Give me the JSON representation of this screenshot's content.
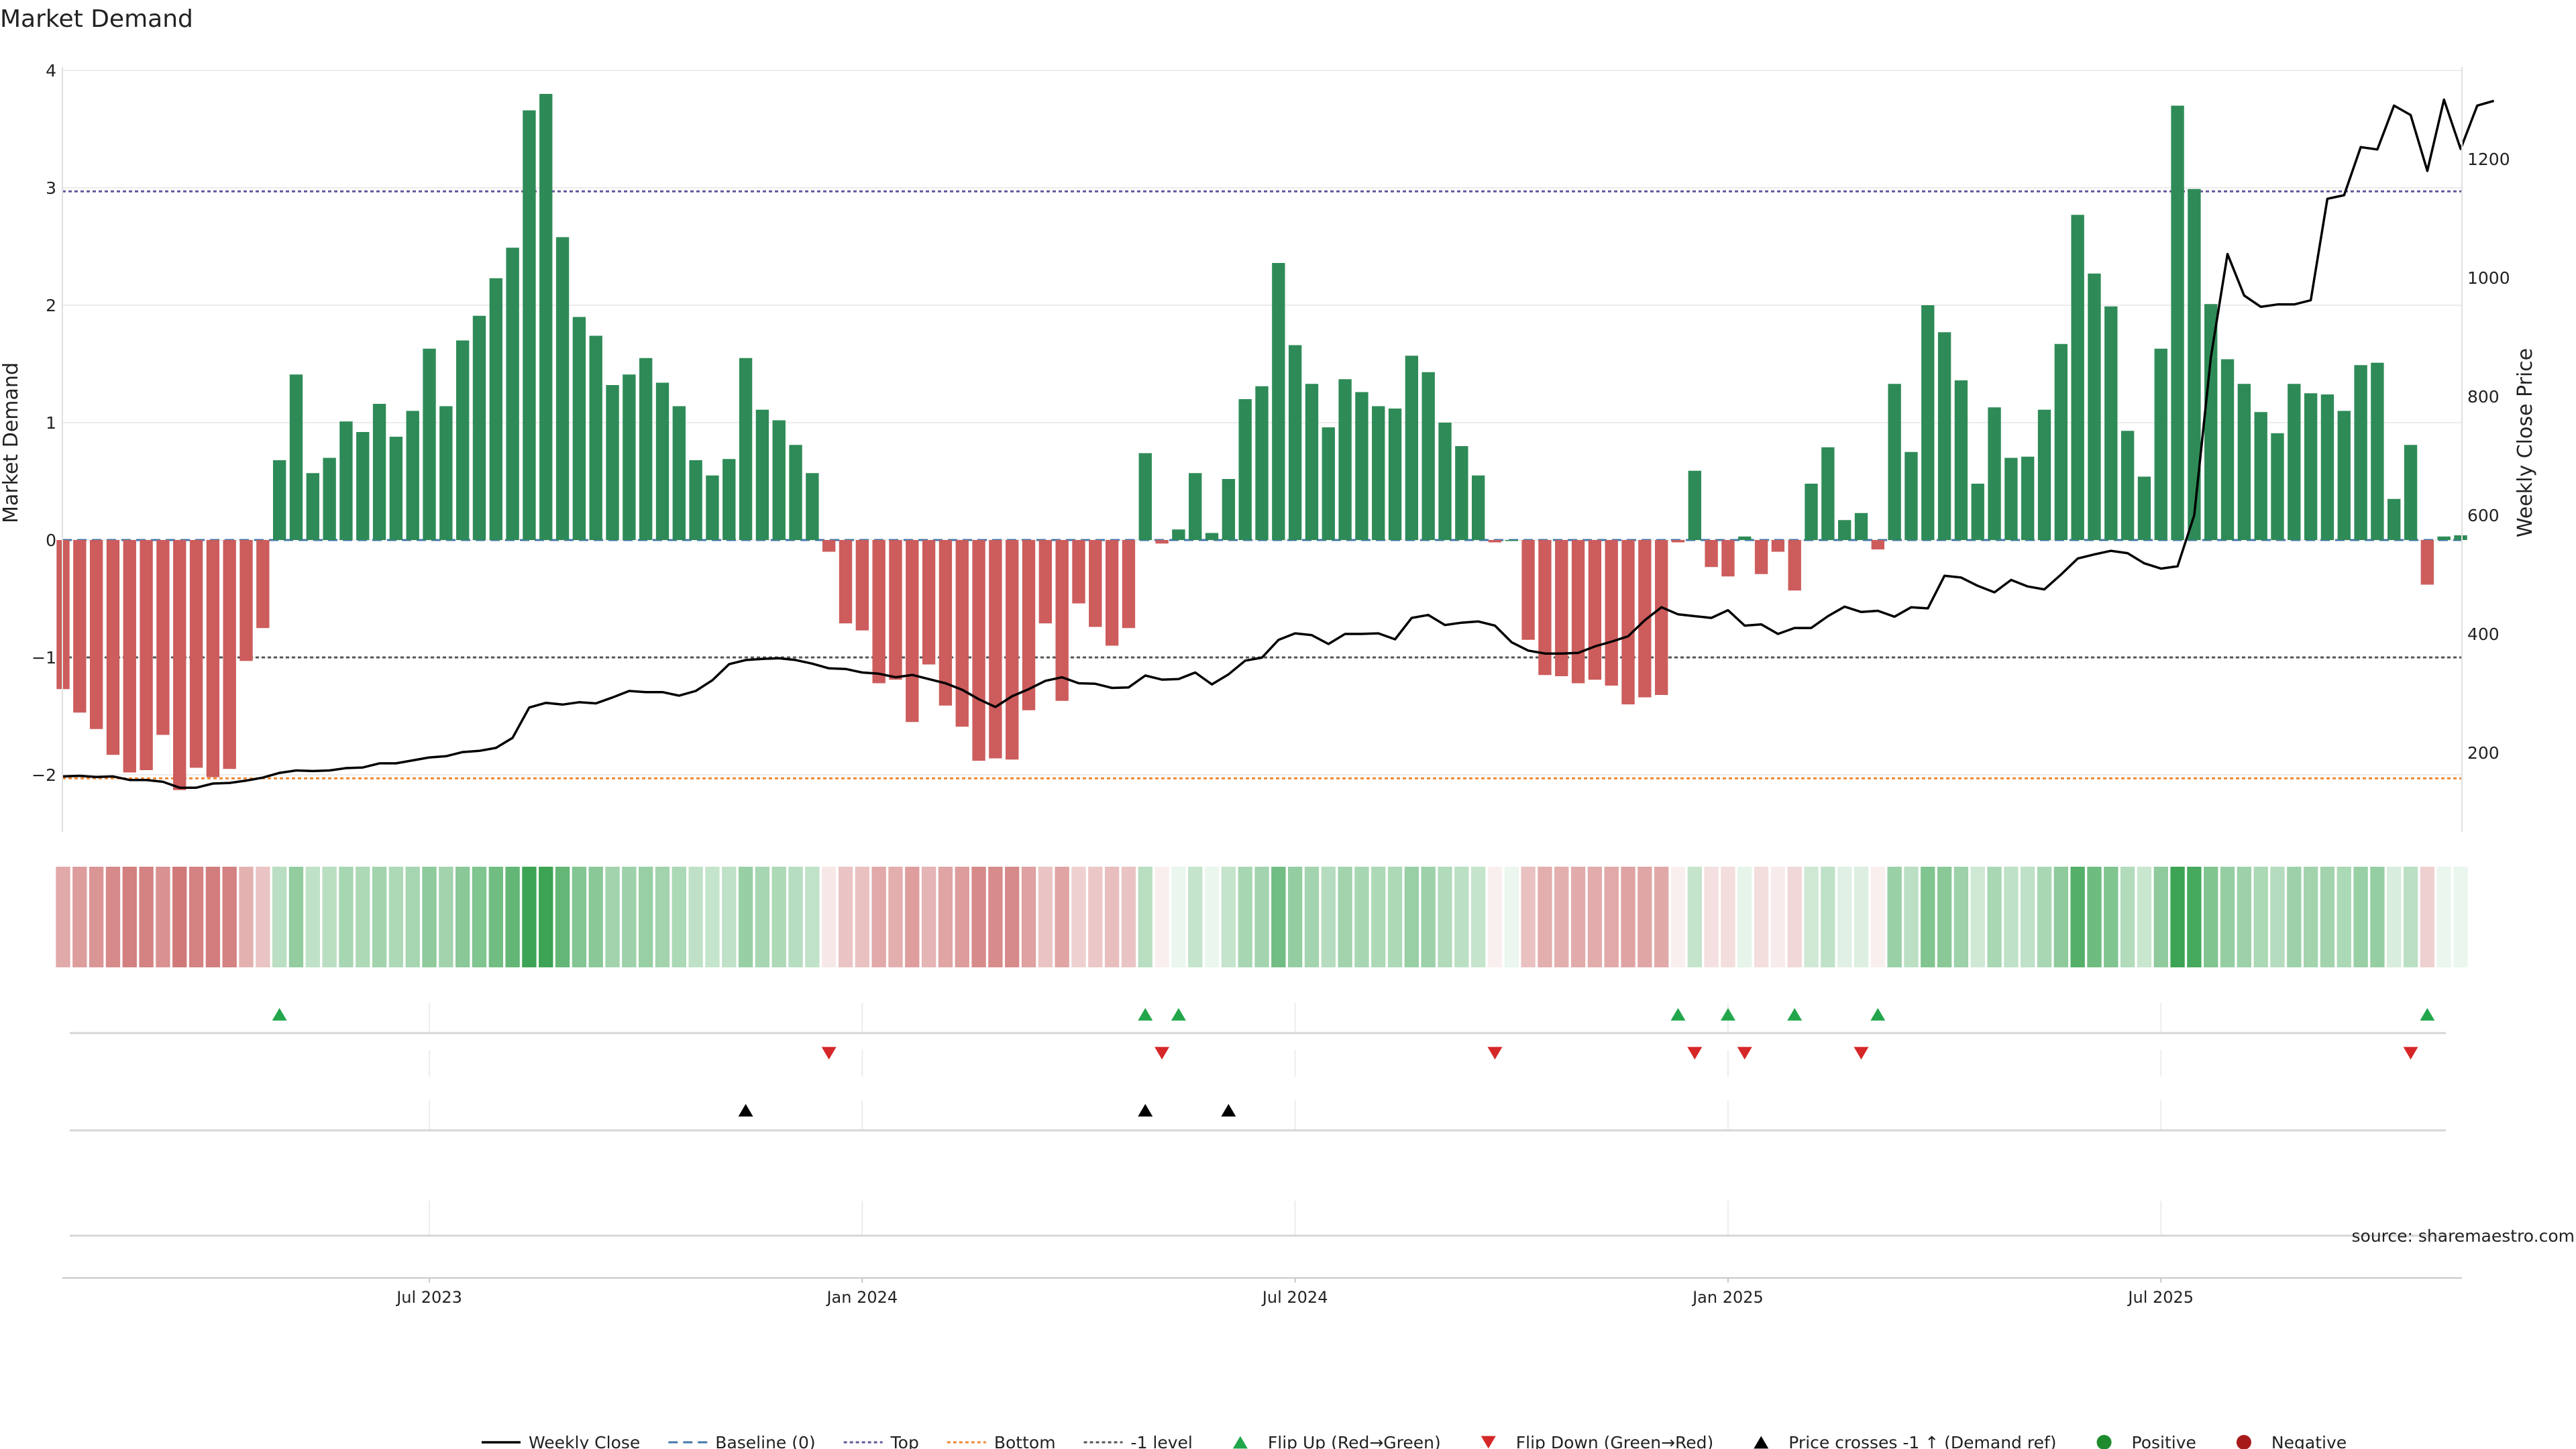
{
  "chart_data": {
    "type": "bar",
    "title": "Market Demand",
    "ylabel": "Market Demand",
    "y2label": "Weekly Close Price",
    "ylim": [
      -2.5,
      4.0
    ],
    "y2lim": [
      80,
      1400
    ],
    "yticks": [
      -2,
      -1,
      0,
      1,
      2,
      3,
      4
    ],
    "yticks_right": [
      200,
      400,
      600,
      800,
      1000,
      1200
    ],
    "xlabels": [
      {
        "i": 22,
        "label": "Jul 2023"
      },
      {
        "i": 48,
        "label": "Jan 2024"
      },
      {
        "i": 74,
        "label": "Jul 2024"
      },
      {
        "i": 100,
        "label": "Jan 2025"
      },
      {
        "i": 126,
        "label": "Jul 2025"
      }
    ],
    "reference_lines": {
      "top": 2.97,
      "bottom": -2.03,
      "minus_one": -1.0,
      "baseline": 0
    },
    "demand": [
      -1.27,
      -1.47,
      -1.61,
      -1.83,
      -1.98,
      -1.96,
      -1.66,
      -2.13,
      -1.94,
      -2.02,
      -1.95,
      -1.03,
      -0.75,
      0.68,
      1.41,
      0.57,
      0.7,
      1.01,
      0.92,
      1.16,
      0.88,
      1.1,
      1.63,
      1.14,
      1.7,
      1.91,
      2.23,
      2.49,
      3.66,
      3.8,
      2.58,
      1.9,
      1.74,
      1.32,
      1.41,
      1.55,
      1.34,
      1.14,
      0.68,
      0.55,
      0.69,
      1.55,
      1.11,
      1.02,
      0.81,
      0.57,
      -0.1,
      -0.71,
      -0.77,
      -1.22,
      -1.19,
      -1.55,
      -1.06,
      -1.41,
      -1.59,
      -1.88,
      -1.86,
      -1.87,
      -1.45,
      -0.71,
      -1.37,
      -0.54,
      -0.74,
      -0.9,
      -0.75,
      0.74,
      -0.03,
      0.09,
      0.57,
      0.06,
      0.52,
      1.2,
      1.31,
      2.36,
      1.66,
      1.33,
      0.96,
      1.37,
      1.26,
      1.14,
      1.12,
      1.57,
      1.43,
      1.0,
      0.8,
      0.55,
      -0.02,
      0.0,
      -0.85,
      -1.15,
      -1.16,
      -1.22,
      -1.19,
      -1.24,
      -1.4,
      -1.34,
      -1.32,
      -0.02,
      0.59,
      -0.23,
      -0.31,
      0.03,
      -0.29,
      -0.1,
      -0.43,
      0.48,
      0.79,
      0.17,
      0.23,
      -0.08,
      1.33,
      0.75,
      2.0,
      1.77,
      1.36,
      0.48,
      1.13,
      0.7,
      0.71,
      1.11,
      1.67,
      2.77,
      2.27,
      1.99,
      0.93,
      0.54,
      1.63,
      3.7,
      2.99,
      2.01,
      1.54,
      1.33,
      1.09,
      0.91,
      1.33,
      1.25,
      1.24,
      1.1,
      1.49,
      1.51,
      0.35,
      0.81,
      -0.38,
      0.03,
      0.04
    ],
    "price": [
      160,
      161,
      159,
      160,
      154,
      154,
      151,
      141,
      141,
      148,
      149,
      153,
      158,
      166,
      170,
      169,
      170,
      174,
      175,
      182,
      182,
      187,
      192,
      194,
      201,
      203,
      208,
      225,
      276,
      284,
      281,
      285,
      283,
      293,
      304,
      302,
      302,
      296,
      304,
      322,
      349,
      356,
      358,
      359,
      356,
      350,
      342,
      341,
      335,
      333,
      327,
      331,
      324,
      317,
      306,
      290,
      277,
      295,
      307,
      321,
      327,
      317,
      316,
      309,
      310,
      330,
      323,
      324,
      335,
      315,
      332,
      355,
      360,
      390,
      401,
      398,
      383,
      400,
      400,
      401,
      391,
      427,
      432,
      415,
      419,
      421,
      414,
      386,
      372,
      367,
      367,
      368,
      379,
      387,
      396,
      423,
      445,
      433,
      430,
      427,
      440,
      414,
      416,
      400,
      410,
      410,
      430,
      446,
      437,
      439,
      429,
      445,
      443,
      498,
      495,
      481,
      470,
      491,
      480,
      475,
      500,
      527,
      534,
      540,
      536,
      519,
      510,
      514,
      600,
      866,
      1040,
      970,
      951,
      955,
      955,
      962,
      1133,
      1139,
      1220,
      1216,
      1290,
      1274,
      1180,
      1300,
      1217,
      1290,
      1298
    ],
    "strip_alpha": [
      0.55,
      0.63,
      0.68,
      0.75,
      0.81,
      0.8,
      0.7,
      0.86,
      0.8,
      0.83,
      0.8,
      0.5,
      0.38,
      0.36,
      0.56,
      0.33,
      0.36,
      0.45,
      0.42,
      0.48,
      0.42,
      0.46,
      0.58,
      0.48,
      0.6,
      0.65,
      0.73,
      0.8,
      1.0,
      1.0,
      0.8,
      0.63,
      0.6,
      0.48,
      0.5,
      0.53,
      0.48,
      0.43,
      0.33,
      0.3,
      0.33,
      0.53,
      0.45,
      0.42,
      0.37,
      0.32,
      0.15,
      0.38,
      0.4,
      0.55,
      0.52,
      0.62,
      0.48,
      0.58,
      0.63,
      0.75,
      0.74,
      0.75,
      0.6,
      0.38,
      0.58,
      0.3,
      0.36,
      0.42,
      0.38,
      0.36,
      0.1,
      0.1,
      0.3,
      0.1,
      0.3,
      0.45,
      0.47,
      0.72,
      0.55,
      0.47,
      0.38,
      0.48,
      0.45,
      0.42,
      0.42,
      0.53,
      0.5,
      0.4,
      0.35,
      0.3,
      0.1,
      0.1,
      0.4,
      0.52,
      0.52,
      0.54,
      0.53,
      0.55,
      0.59,
      0.57,
      0.56,
      0.1,
      0.3,
      0.2,
      0.22,
      0.12,
      0.22,
      0.13,
      0.25,
      0.25,
      0.33,
      0.16,
      0.18,
      0.1,
      0.52,
      0.35,
      0.65,
      0.6,
      0.5,
      0.25,
      0.44,
      0.33,
      0.33,
      0.44,
      0.58,
      0.88,
      0.74,
      0.65,
      0.4,
      0.28,
      0.58,
      1.0,
      0.95,
      0.65,
      0.54,
      0.5,
      0.43,
      0.38,
      0.5,
      0.48,
      0.48,
      0.43,
      0.53,
      0.54,
      0.2,
      0.35,
      0.3,
      0.1,
      0.1
    ],
    "flip_up": [
      13,
      65,
      67,
      97,
      100,
      104,
      109,
      142
    ],
    "flip_down": [
      46,
      66,
      86,
      98,
      101,
      108,
      141
    ],
    "price_cross": [
      41,
      65,
      70
    ],
    "colors": {
      "positive": "#2e8b57",
      "negative": "#cd5c5c",
      "strip_positive": "#3ca454",
      "strip_negative": "#c96363",
      "price_line": "#000000",
      "baseline": "#4477aa",
      "top": "#665599",
      "bottom": "#ee8833",
      "minus_one": "#555555",
      "flip_up": "#22a64b",
      "flip_down": "#d62728",
      "cross": "#000000",
      "legend_positive": "#1e8c2e",
      "legend_negative": "#a81b1b"
    },
    "legend": [
      {
        "key": "line",
        "label": "Weekly Close"
      },
      {
        "key": "baseline",
        "label": "Baseline (0)"
      },
      {
        "key": "top",
        "label": "Top"
      },
      {
        "key": "bottom",
        "label": "Bottom"
      },
      {
        "key": "minus_one",
        "label": "-1 level"
      },
      {
        "key": "flip_up",
        "label": "Flip Up (Red→Green)"
      },
      {
        "key": "flip_down",
        "label": "Flip Down (Green→Red)"
      },
      {
        "key": "cross",
        "label": "Price crosses -1 ↑ (Demand ref)"
      },
      {
        "key": "positive",
        "label": "Positive"
      },
      {
        "key": "negative",
        "label": "Negative"
      }
    ],
    "source": "source: sharemaestro.com"
  }
}
